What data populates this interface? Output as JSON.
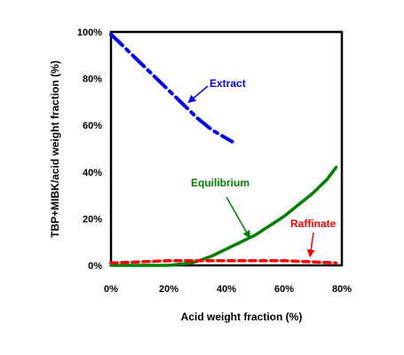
{
  "chart_data": {
    "type": "line",
    "xlabel": "Acid weight fraction (%)",
    "ylabel": "TBP+MIBK/acid weight fraction (%)",
    "xlim": [
      0,
      80
    ],
    "ylim": [
      0,
      100
    ],
    "x_ticks": [
      "0%",
      "20%",
      "40%",
      "60%",
      "80%"
    ],
    "y_ticks": [
      "0%",
      "20%",
      "40%",
      "60%",
      "80%",
      "100%"
    ],
    "grid": false,
    "series": [
      {
        "name": "Extract",
        "color": "#0000ff",
        "style": "dash-dot",
        "x": [
          0,
          5,
          10,
          15,
          20,
          25,
          30,
          35,
          42
        ],
        "y": [
          99,
          93,
          87,
          81,
          75,
          69,
          63,
          58,
          53
        ]
      },
      {
        "name": "Equilibrium",
        "color": "#008000",
        "style": "solid",
        "x": [
          0,
          10,
          20,
          28,
          35,
          40,
          45,
          50,
          55,
          60,
          65,
          70,
          75,
          78
        ],
        "y": [
          0,
          0,
          0,
          1,
          4,
          7,
          10,
          13,
          17,
          21,
          26,
          31,
          37,
          42
        ]
      },
      {
        "name": "Raffinate",
        "color": "#ff0000",
        "style": "dashed",
        "x": [
          0,
          10,
          20,
          30,
          40,
          50,
          60,
          70,
          78
        ],
        "y": [
          1,
          1.5,
          2,
          2,
          2,
          2,
          2,
          1.5,
          1
        ]
      }
    ],
    "annotations": [
      {
        "text": "Extract",
        "color": "#0000ff",
        "arrow_to": [
          27,
          70
        ]
      },
      {
        "text": "Equilibrium",
        "color": "#008000",
        "arrow_to": [
          48,
          12
        ]
      },
      {
        "text": "Raffinate",
        "color": "#ff0000",
        "arrow_to": [
          69,
          4
        ]
      }
    ]
  }
}
